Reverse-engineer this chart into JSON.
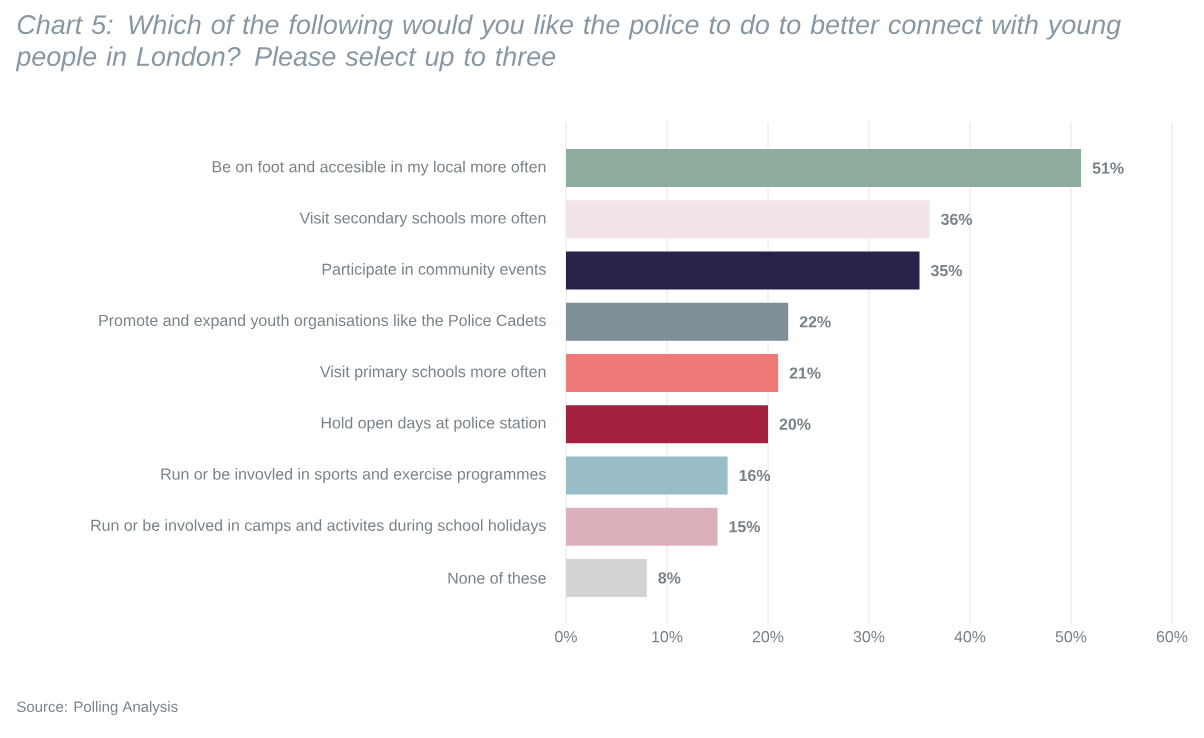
{
  "chart_data": {
    "type": "bar",
    "orientation": "horizontal",
    "title": "Chart 5: Which of the following would you like the police to do to better connect with young people in London? Please select up to three",
    "categories": [
      "Be on foot and accesible in my local more often",
      "Visit secondary schools more often",
      "Participate in community events",
      "Promote and expand youth organisations like the Police Cadets",
      "Visit primary schools more often",
      "Hold open days at police station",
      "Run or be invovled in sports and exercise programmes",
      "Run or be involved in camps and activites during school holidays",
      "None of these"
    ],
    "values": [
      51,
      36,
      35,
      22,
      21,
      20,
      16,
      15,
      8
    ],
    "value_labels": [
      "51%",
      "36%",
      "35%",
      "22%",
      "21%",
      "20%",
      "16%",
      "15%",
      "8%"
    ],
    "colors": [
      "#8fad9c",
      "#f2e4e8",
      "#28224a",
      "#7f8f96",
      "#ef7879",
      "#a32040",
      "#98bdc7",
      "#dcb0bb",
      "#d3d3d3"
    ],
    "xlim": [
      0,
      60
    ],
    "xticks": [
      {
        "value": 0,
        "label": "0%"
      },
      {
        "value": 10,
        "label": "10%"
      },
      {
        "value": 20,
        "label": "20%"
      },
      {
        "value": 30,
        "label": "30%"
      },
      {
        "value": 40,
        "label": "40%"
      },
      {
        "value": 50,
        "label": "50%"
      },
      {
        "value": 60,
        "label": "60%"
      }
    ],
    "grid": "x",
    "annotations": [
      "Source: Polling Analysis"
    ]
  }
}
